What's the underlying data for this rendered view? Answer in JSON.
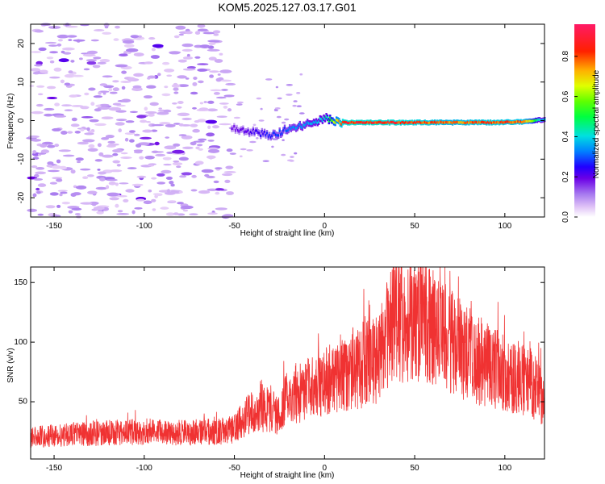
{
  "figure_title": "KOM5.2025.127.03.17.G01",
  "chart_data": [
    {
      "type": "heatmap",
      "xlabel": "Height of straight line (km)",
      "ylabel": "Frequency (Hz)",
      "xlim": [
        -163,
        122
      ],
      "ylim": [
        -25,
        25
      ],
      "xticks": [
        -150,
        -100,
        -50,
        0,
        50,
        100
      ],
      "yticks": [
        -20,
        -10,
        0,
        10,
        20
      ],
      "colorbar": {
        "label": "Normalized spectral amplitude",
        "range": [
          0,
          0.96
        ],
        "ticks": [
          0.0,
          0.2,
          0.4,
          0.6,
          0.8
        ]
      },
      "grid": false,
      "description_points": {
        "height_km": [
          -50,
          -40,
          -30,
          -20,
          -10,
          0,
          10,
          30,
          50,
          70,
          90,
          110,
          120
        ],
        "peak_frequency_hz": [
          -2,
          -3,
          -4,
          -2,
          -1,
          0.5,
          -0.5,
          -0.5,
          -0.5,
          -0.5,
          -0.5,
          -0.3,
          0.2
        ],
        "peak_amplitude": [
          0.2,
          0.25,
          0.3,
          0.35,
          0.4,
          0.45,
          0.95,
          0.95,
          0.92,
          0.85,
          0.9,
          0.88,
          0.4
        ]
      }
    },
    {
      "type": "line",
      "xlabel": "Height of straight line (km)",
      "ylabel": "SNR (v/v)",
      "xlim": [
        -163,
        122
      ],
      "ylim": [
        2,
        163
      ],
      "xticks": [
        -150,
        -100,
        -50,
        0,
        50,
        100
      ],
      "yticks": [
        50,
        100,
        150
      ],
      "color": "#f03232",
      "grid": false,
      "envelope": {
        "x": [
          -163,
          -150,
          -120,
          -100,
          -80,
          -60,
          -50,
          -45,
          -35,
          -25,
          -20,
          -10,
          0,
          10,
          20,
          30,
          38,
          45,
          55,
          65,
          75,
          85,
          95,
          105,
          115,
          122
        ],
        "y": [
          20,
          22,
          24,
          25,
          24,
          25,
          27,
          36,
          45,
          40,
          55,
          60,
          65,
          75,
          80,
          88,
          120,
          115,
          118,
          105,
          95,
          85,
          78,
          72,
          65,
          50
        ]
      }
    }
  ]
}
